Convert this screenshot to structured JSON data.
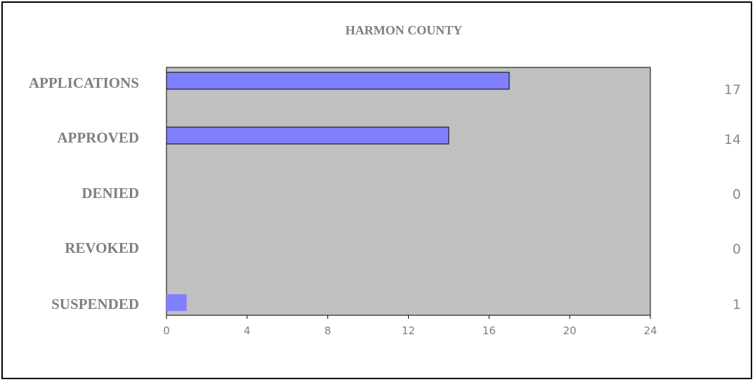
{
  "chart_data": {
    "type": "bar",
    "orientation": "horizontal",
    "title": "HARMON COUNTY",
    "categories": [
      "APPLICATIONS",
      "APPROVED",
      "DENIED",
      "REVOKED",
      "SUSPENDED"
    ],
    "values": [
      17,
      14,
      0,
      0,
      1
    ],
    "value_labels": [
      "17",
      "14",
      "0",
      "0",
      "1"
    ],
    "xlim": [
      0,
      24
    ],
    "xticks": [
      0,
      4,
      8,
      12,
      16,
      20,
      24
    ],
    "xlabel": "",
    "ylabel": "",
    "grid": false,
    "legend": "none",
    "colors": {
      "bar": "#8080ff",
      "plot_background": "#c0c0c0",
      "text": "#7f7f7f"
    }
  }
}
